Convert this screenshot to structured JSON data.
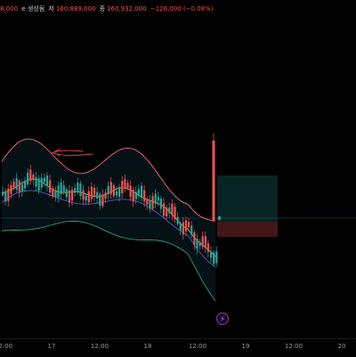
{
  "header": {
    "prefix": "8,000",
    "title_tail": "е 생성됨",
    "high_label": "저",
    "high_value": "160,889,000",
    "close_label": "종",
    "close_value": "160,932,000",
    "change": "−126,000 (−0.08%)"
  },
  "x_axis": {
    "labels": [
      "12:00",
      "17",
      "12:00",
      "18",
      "12:00",
      "19",
      "12:00",
      "20"
    ]
  },
  "colors": {
    "up": "#26a69a",
    "down": "#ef5350",
    "bb_upper": "#f06a78",
    "bb_lower": "#2e9e74",
    "bb_fill": "rgba(20,60,80,0.28)",
    "ma": "#d6c94a",
    "ma2": "#4f64d8",
    "long_zone": "rgba(38,166,154,0.22)",
    "short_zone": "rgba(239,83,80,0.28)",
    "annotation": "#e04a4a"
  },
  "chart_data": {
    "type": "candlestick",
    "x": [
      "16 12:00",
      "17",
      "17 12:00",
      "18",
      "18 12:00",
      "19",
      "19 12:00",
      "20"
    ],
    "icons": [
      "lightning-icon"
    ]
  }
}
